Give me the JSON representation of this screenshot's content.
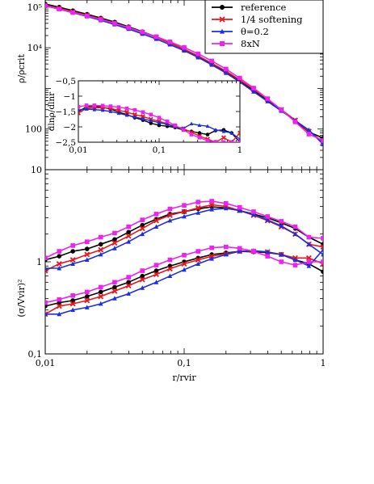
{
  "colors": {
    "reference": "#000000",
    "softening": "#e8161b",
    "theta": "#1a2fe0",
    "eightN": "#ee22ee"
  },
  "chart_data": [
    {
      "id": "density",
      "type": "line",
      "xscale": "log",
      "yscale": "log",
      "xlim": [
        0.01,
        1
      ],
      "ylim": [
        10,
        150000
      ],
      "ylabel": "ρ/ρcrit",
      "xlabel": "",
      "yticks": [
        {
          "value": 100000,
          "label": "10⁵"
        },
        {
          "value": 10000,
          "label": "10⁴"
        },
        {
          "value": 100,
          "label": "100"
        },
        {
          "value": 10,
          "label": "10"
        }
      ],
      "legend": {
        "placement": "top-right",
        "entries": [
          {
            "label": "reference",
            "color": "#000000",
            "marker": "circle"
          },
          {
            "label": "1/4 softening",
            "color": "#e8161b",
            "marker": "cross"
          },
          {
            "label": "θ=0.2",
            "color": "#1a2fe0",
            "marker": "triangle"
          },
          {
            "label": "8xN",
            "color": "#ee22ee",
            "marker": "square"
          }
        ]
      },
      "series": [
        {
          "name": "reference",
          "color": "#000000",
          "marker": "circle",
          "x": [
            0.01,
            0.0126,
            0.0158,
            0.02,
            0.0251,
            0.0316,
            0.0398,
            0.05,
            0.063,
            0.079,
            0.1,
            0.126,
            0.158,
            0.2,
            0.251,
            0.316,
            0.398,
            0.5,
            0.63,
            0.79,
            1.0
          ],
          "y": [
            120000,
            100000,
            82000,
            67000,
            54000,
            43000,
            33000,
            25000,
            18500,
            13200,
            9200,
            6200,
            4050,
            2550,
            1550,
            900,
            510,
            290,
            160,
            85,
            60
          ]
        },
        {
          "name": "1/4 softening",
          "color": "#e8161b",
          "marker": "cross",
          "x": [
            0.01,
            0.0126,
            0.0158,
            0.02,
            0.0251,
            0.0316,
            0.0398,
            0.05,
            0.063,
            0.079,
            0.1,
            0.126,
            0.158,
            0.2,
            0.251,
            0.316,
            0.398,
            0.5,
            0.63,
            0.79,
            1.0
          ],
          "y": [
            112000,
            94000,
            77000,
            63000,
            51000,
            40500,
            31500,
            24000,
            18000,
            13000,
            9200,
            6300,
            4150,
            2650,
            1620,
            950,
            540,
            300,
            165,
            88,
            48
          ]
        },
        {
          "name": "θ=0.2",
          "color": "#1a2fe0",
          "marker": "triangle",
          "x": [
            0.01,
            0.0126,
            0.0158,
            0.02,
            0.0251,
            0.0316,
            0.0398,
            0.05,
            0.063,
            0.079,
            0.1,
            0.126,
            0.158,
            0.2,
            0.251,
            0.316,
            0.398,
            0.5,
            0.63,
            0.79,
            1.0
          ],
          "y": [
            108000,
            89000,
            73000,
            59000,
            47500,
            37500,
            29000,
            22000,
            16500,
            12000,
            8500,
            5800,
            3800,
            2400,
            1450,
            830,
            480,
            280,
            160,
            95,
            42
          ]
        },
        {
          "name": "8xN",
          "color": "#ee22ee",
          "marker": "square",
          "x": [
            0.01,
            0.0126,
            0.0158,
            0.02,
            0.0251,
            0.0316,
            0.0398,
            0.05,
            0.063,
            0.079,
            0.1,
            0.126,
            0.158,
            0.2,
            0.251,
            0.316,
            0.398,
            0.5,
            0.63,
            0.79,
            1.0
          ],
          "y": [
            108000,
            90000,
            74000,
            61000,
            50000,
            40000,
            31500,
            24500,
            18800,
            14000,
            10200,
            7100,
            4750,
            3000,
            1800,
            1020,
            560,
            300,
            150,
            75,
            52
          ]
        }
      ],
      "inset": {
        "type": "line",
        "xscale": "log",
        "xlim": [
          0.01,
          1
        ],
        "ylim": [
          -2.5,
          -0.5
        ],
        "ylabel": "dlnρ/dlnr",
        "xticks": [
          {
            "value": 0.01,
            "label": "0,01"
          },
          {
            "value": 0.1,
            "label": "0,1"
          },
          {
            "value": 1,
            "label": "1"
          }
        ],
        "yticks": [
          {
            "value": -0.5,
            "label": "−0,5"
          },
          {
            "value": -1,
            "label": "−1"
          },
          {
            "value": -1.5,
            "label": "−1,5"
          },
          {
            "value": -2,
            "label": "−2"
          },
          {
            "value": -2.5,
            "label": "−2,5"
          }
        ],
        "series": [
          {
            "name": "reference",
            "color": "#000000",
            "marker": "circle",
            "x": [
              0.01,
              0.0126,
              0.0158,
              0.02,
              0.0251,
              0.0316,
              0.0398,
              0.05,
              0.063,
              0.079,
              0.1,
              0.126,
              0.158,
              0.2,
              0.251,
              0.316,
              0.398,
              0.5,
              0.63,
              0.79,
              1.0
            ],
            "y": [
              -1.5,
              -1.35,
              -1.33,
              -1.36,
              -1.42,
              -1.52,
              -1.6,
              -1.7,
              -1.78,
              -1.88,
              -1.95,
              -1.98,
              -2.02,
              -2.1,
              -2.15,
              -2.2,
              -2.25,
              -2.12,
              -2.1,
              -2.2,
              -2.5
            ]
          },
          {
            "name": "1/4 softening",
            "color": "#e8161b",
            "marker": "cross",
            "x": [
              0.01,
              0.0126,
              0.0158,
              0.02,
              0.0251,
              0.0316,
              0.0398,
              0.05,
              0.063,
              0.079,
              0.1,
              0.126,
              0.158,
              0.2,
              0.251,
              0.316,
              0.398,
              0.5,
              0.63,
              0.79,
              1.0
            ],
            "y": [
              -1.55,
              -1.4,
              -1.38,
              -1.37,
              -1.4,
              -1.46,
              -1.52,
              -1.6,
              -1.66,
              -1.75,
              -1.82,
              -1.9,
              -1.98,
              -2.06,
              -2.18,
              -2.3,
              -2.4,
              -2.5,
              -2.35,
              -2.5,
              -2.2
            ]
          },
          {
            "name": "θ=0.2",
            "color": "#1a2fe0",
            "marker": "triangle",
            "x": [
              0.01,
              0.0126,
              0.0158,
              0.02,
              0.0251,
              0.0316,
              0.0398,
              0.05,
              0.063,
              0.079,
              0.1,
              0.126,
              0.158,
              0.2,
              0.251,
              0.316,
              0.398,
              0.5,
              0.63,
              0.79,
              1.0
            ],
            "y": [
              -1.45,
              -1.42,
              -1.44,
              -1.46,
              -1.5,
              -1.56,
              -1.62,
              -1.68,
              -1.74,
              -1.8,
              -1.86,
              -1.92,
              -2.0,
              -2.05,
              -1.9,
              -1.95,
              -1.98,
              -2.1,
              -2.15,
              -2.2,
              -2.4
            ]
          },
          {
            "name": "8xN",
            "color": "#ee22ee",
            "marker": "square",
            "x": [
              0.01,
              0.0126,
              0.0158,
              0.02,
              0.0251,
              0.0316,
              0.0398,
              0.05,
              0.063,
              0.079,
              0.1,
              0.126,
              0.158,
              0.2,
              0.251,
              0.316,
              0.398,
              0.5,
              0.63,
              0.79,
              1.0
            ],
            "y": [
              -1.35,
              -1.3,
              -1.3,
              -1.31,
              -1.33,
              -1.36,
              -1.4,
              -1.45,
              -1.52,
              -1.6,
              -1.7,
              -1.82,
              -1.95,
              -2.1,
              -2.25,
              -2.35,
              -2.45,
              -2.5,
              -2.5,
              -2.5,
              -2.5
            ]
          }
        ]
      }
    },
    {
      "id": "dispersion",
      "type": "line",
      "xscale": "log",
      "yscale": "log",
      "xlim": [
        0.01,
        1
      ],
      "ylim": [
        0.1,
        10
      ],
      "xlabel": "r/rvir",
      "ylabel": "(σ/Vvir)²",
      "xticks": [
        {
          "value": 0.01,
          "label": "0,01"
        },
        {
          "value": 0.1,
          "label": "0,1"
        },
        {
          "value": 1,
          "label": "1"
        }
      ],
      "yticks": [
        {
          "value": 1,
          "label": "1"
        },
        {
          "value": 0.1,
          "label": "0,1"
        }
      ],
      "series": [
        {
          "name": "reference",
          "group": "upper",
          "color": "#000000",
          "marker": "circle",
          "x": [
            0.01,
            0.0126,
            0.0158,
            0.02,
            0.0251,
            0.0316,
            0.0398,
            0.05,
            0.063,
            0.079,
            0.1,
            0.126,
            0.158,
            0.2,
            0.251,
            0.316,
            0.398,
            0.5,
            0.63,
            0.79,
            1.0
          ],
          "y": [
            1.05,
            1.15,
            1.3,
            1.38,
            1.55,
            1.75,
            2.1,
            2.5,
            2.9,
            3.3,
            3.5,
            3.75,
            3.95,
            3.85,
            3.6,
            3.3,
            3.0,
            2.65,
            2.3,
            1.85,
            1.55
          ]
        },
        {
          "name": "reference",
          "group": "lower",
          "color": "#000000",
          "marker": "circle",
          "x": [
            0.01,
            0.0126,
            0.0158,
            0.02,
            0.0251,
            0.0316,
            0.0398,
            0.05,
            0.063,
            0.079,
            0.1,
            0.126,
            0.158,
            0.2,
            0.251,
            0.316,
            0.398,
            0.5,
            0.63,
            0.79,
            1.0
          ],
          "y": [
            0.33,
            0.36,
            0.38,
            0.42,
            0.47,
            0.53,
            0.6,
            0.7,
            0.8,
            0.9,
            1.0,
            1.1,
            1.2,
            1.25,
            1.3,
            1.28,
            1.26,
            1.2,
            1.05,
            0.95,
            0.78
          ]
        },
        {
          "name": "1/4 softening",
          "group": "upper",
          "color": "#e8161b",
          "marker": "cross",
          "x": [
            0.01,
            0.0126,
            0.0158,
            0.02,
            0.0251,
            0.0316,
            0.0398,
            0.05,
            0.063,
            0.079,
            0.1,
            0.126,
            0.158,
            0.2,
            0.251,
            0.316,
            0.398,
            0.5,
            0.63,
            0.79,
            1.0
          ],
          "y": [
            0.8,
            0.95,
            1.05,
            1.2,
            1.35,
            1.6,
            1.9,
            2.3,
            2.8,
            3.2,
            3.5,
            3.85,
            4.15,
            4.0,
            3.6,
            3.2,
            2.8,
            2.4,
            2.0,
            1.55,
            1.45
          ]
        },
        {
          "name": "1/4 softening",
          "group": "lower",
          "color": "#e8161b",
          "marker": "cross",
          "x": [
            0.01,
            0.0126,
            0.0158,
            0.02,
            0.0251,
            0.0316,
            0.0398,
            0.05,
            0.063,
            0.079,
            0.1,
            0.126,
            0.158,
            0.2,
            0.251,
            0.316,
            0.398,
            0.5,
            0.63,
            0.79,
            1.0
          ],
          "y": [
            0.27,
            0.33,
            0.35,
            0.38,
            0.42,
            0.48,
            0.55,
            0.64,
            0.73,
            0.84,
            0.95,
            1.05,
            1.15,
            1.22,
            1.3,
            1.3,
            1.28,
            1.2,
            1.1,
            1.1,
            0.95
          ]
        },
        {
          "name": "θ=0.2",
          "group": "upper",
          "color": "#1a2fe0",
          "marker": "triangle",
          "x": [
            0.01,
            0.0126,
            0.0158,
            0.02,
            0.0251,
            0.0316,
            0.0398,
            0.05,
            0.063,
            0.079,
            0.1,
            0.126,
            0.158,
            0.2,
            0.251,
            0.316,
            0.398,
            0.5,
            0.63,
            0.79,
            1.0
          ],
          "y": [
            0.85,
            0.85,
            0.95,
            1.05,
            1.2,
            1.4,
            1.65,
            2.0,
            2.4,
            2.8,
            3.1,
            3.4,
            3.7,
            3.8,
            3.6,
            3.25,
            2.85,
            2.45,
            2.0,
            1.55,
            1.2
          ]
        },
        {
          "name": "θ=0.2",
          "group": "lower",
          "color": "#1a2fe0",
          "marker": "triangle",
          "x": [
            0.01,
            0.0126,
            0.0158,
            0.02,
            0.0251,
            0.0316,
            0.0398,
            0.05,
            0.063,
            0.079,
            0.1,
            0.126,
            0.158,
            0.2,
            0.251,
            0.316,
            0.398,
            0.5,
            0.63,
            0.79,
            1.0
          ],
          "y": [
            0.27,
            0.27,
            0.3,
            0.32,
            0.35,
            0.4,
            0.45,
            0.52,
            0.6,
            0.7,
            0.82,
            0.95,
            1.08,
            1.2,
            1.3,
            1.32,
            1.28,
            1.2,
            1.05,
            0.9,
            1.35
          ]
        },
        {
          "name": "8xN",
          "group": "upper",
          "color": "#ee22ee",
          "marker": "square",
          "x": [
            0.01,
            0.0126,
            0.0158,
            0.02,
            0.0251,
            0.0316,
            0.0398,
            0.05,
            0.063,
            0.079,
            0.1,
            0.126,
            0.158,
            0.2,
            0.251,
            0.316,
            0.398,
            0.5,
            0.63,
            0.79,
            1.0
          ],
          "y": [
            1.1,
            1.3,
            1.5,
            1.65,
            1.85,
            2.05,
            2.4,
            2.85,
            3.3,
            3.75,
            4.1,
            4.45,
            4.55,
            4.3,
            3.9,
            3.5,
            3.1,
            2.75,
            2.4,
            1.85,
            1.8
          ]
        },
        {
          "name": "8xN",
          "group": "lower",
          "color": "#ee22ee",
          "marker": "square",
          "x": [
            0.01,
            0.0126,
            0.0158,
            0.02,
            0.0251,
            0.0316,
            0.0398,
            0.05,
            0.063,
            0.079,
            0.1,
            0.126,
            0.158,
            0.2,
            0.251,
            0.316,
            0.398,
            0.5,
            0.63,
            0.79,
            1.0
          ],
          "y": [
            0.36,
            0.39,
            0.43,
            0.47,
            0.53,
            0.6,
            0.68,
            0.8,
            0.92,
            1.05,
            1.18,
            1.3,
            1.42,
            1.45,
            1.4,
            1.3,
            1.15,
            1.0,
            0.92,
            1.0,
            1.0
          ]
        }
      ]
    }
  ]
}
